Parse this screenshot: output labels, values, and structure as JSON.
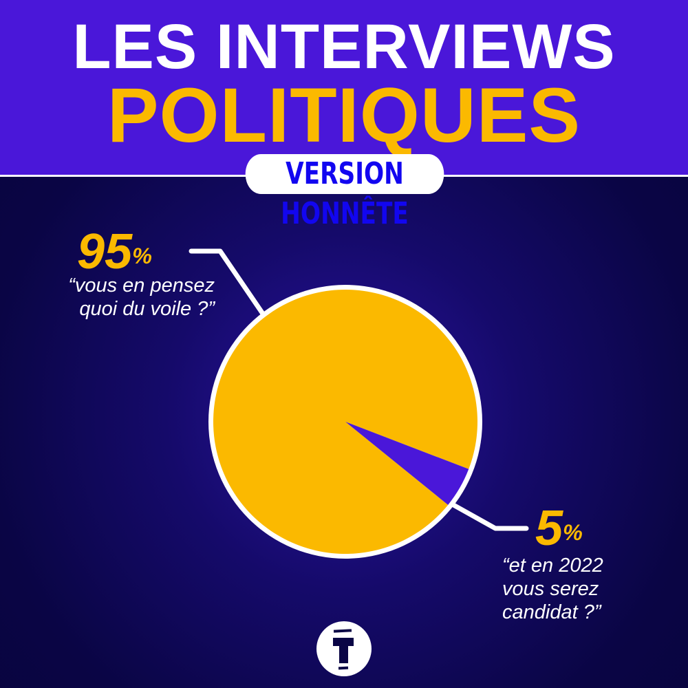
{
  "header": {
    "title_line1": "LES INTERVIEWS",
    "title_line2": "POLITIQUES",
    "badge": "VERSION HONNÊTE"
  },
  "colors": {
    "header_bg": "#4a17d9",
    "accent_yellow": "#fbb900",
    "slice_purple": "#4a17d9",
    "background": "#0a0545"
  },
  "chart_data": {
    "type": "pie",
    "slices": [
      {
        "label": "“vous en pensez quoi du voile ?”",
        "value": 95,
        "display": "95",
        "color": "#fbb900"
      },
      {
        "label": "“et en 2022 vous serez candidat ?”",
        "value": 5,
        "display": "5",
        "color": "#4a17d9"
      }
    ],
    "unit": "%"
  },
  "labels": {
    "big": {
      "pct": "95",
      "unit": "%",
      "line1": "“vous en pensez",
      "line2": "quoi du voile ?”"
    },
    "small": {
      "pct": "5",
      "unit": "%",
      "line1": "“et en 2022",
      "line2": "vous serez",
      "line3": "candidat ?”"
    }
  },
  "logo": {
    "letter": "T",
    "icon": "t-logo-icon"
  }
}
